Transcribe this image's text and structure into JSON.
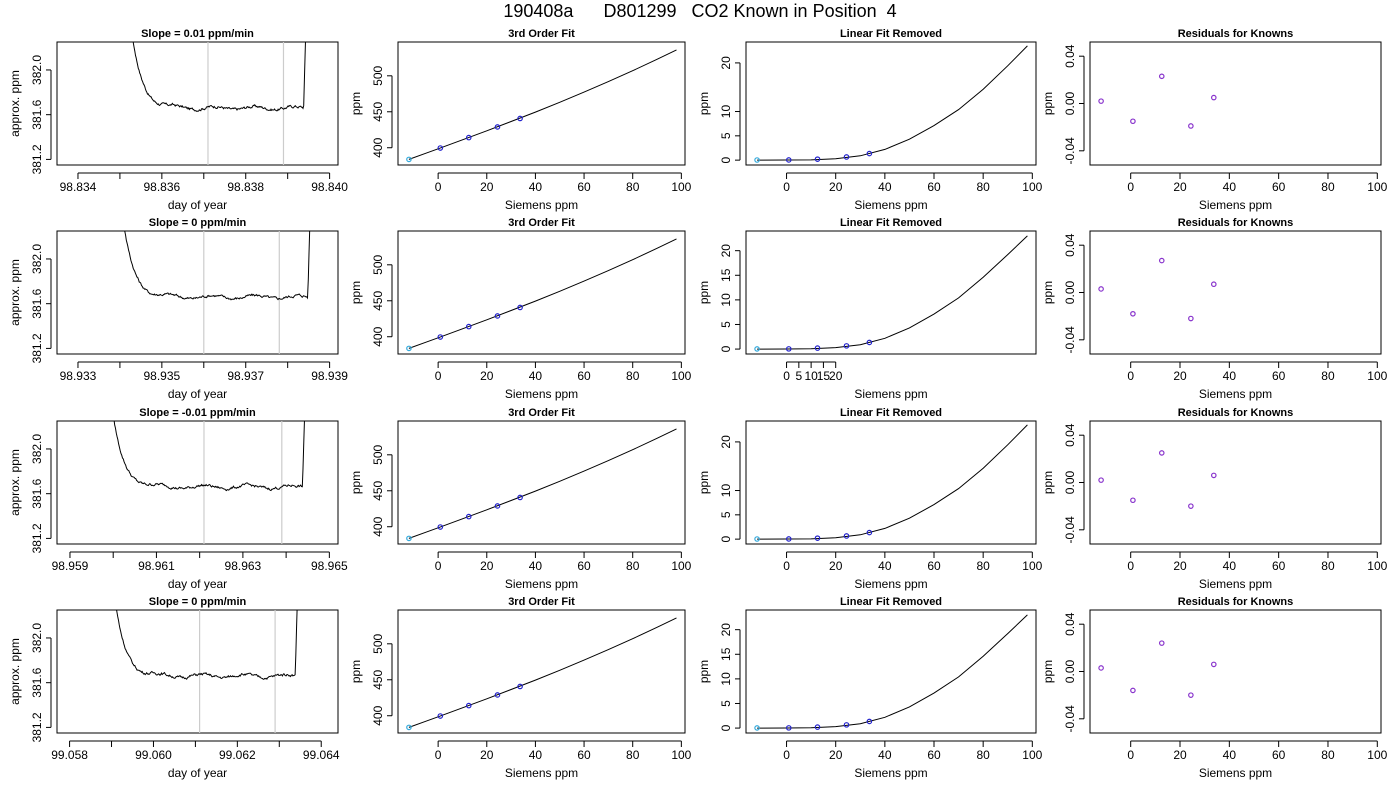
{
  "figure": {
    "title": "190408a      D801299   CO2 Known in Position  4"
  },
  "colors": {
    "axis": "#000000",
    "trace": "#000000",
    "marker_line": "#cccccc",
    "point": "#2222cc",
    "point_hollow": "#8833cc",
    "reference_point": "#33aadd"
  },
  "chart_data": [
    {
      "type": "line",
      "panel": "timeseries",
      "row": 1,
      "title": "Slope =  0.01  ppm/min",
      "xlabel": "day of year",
      "ylabel": "approx. ppm",
      "xlim": [
        98.8335,
        98.8402
      ],
      "ylim": [
        381.15,
        382.25
      ],
      "x_ticks": [
        "98.834",
        "98.836",
        "98.838",
        "98.840"
      ],
      "x_tick_values": [
        98.834,
        98.836,
        98.838,
        98.84
      ],
      "x_minor_ticks": [
        98.835,
        98.837,
        98.839
      ],
      "y_ticks": [
        "381.2",
        "381.6",
        "382.0"
      ],
      "y_tick_values": [
        381.2,
        381.6,
        382.0
      ],
      "interval_markers": [
        98.8371,
        98.8389
      ],
      "trace": {
        "start": 98.8351,
        "end": 98.8395,
        "plateau": 381.66,
        "settle": 0.00045
      }
    },
    {
      "type": "line",
      "panel": "timeseries",
      "row": 2,
      "title": "Slope =  0  ppm/min",
      "xlabel": "day of year",
      "ylabel": "approx. ppm",
      "xlim": [
        98.9325,
        98.9392
      ],
      "ylim": [
        381.15,
        382.25
      ],
      "x_ticks": [
        "98.933",
        "98.935",
        "98.937",
        "98.939"
      ],
      "x_tick_values": [
        98.933,
        98.935,
        98.937,
        98.939
      ],
      "x_minor_ticks": [
        98.934,
        98.936,
        98.938
      ],
      "y_ticks": [
        "381.2",
        "381.6",
        "382.0"
      ],
      "y_tick_values": [
        381.2,
        381.6,
        382.0
      ],
      "interval_markers": [
        98.936,
        98.9378
      ],
      "trace": {
        "start": 98.9339,
        "end": 98.9386,
        "plateau": 381.66,
        "settle": 0.00045
      }
    },
    {
      "type": "line",
      "panel": "timeseries",
      "row": 3,
      "title": "Slope =  -0.01  ppm/min",
      "xlabel": "day of year",
      "ylabel": "approx. ppm",
      "xlim": [
        98.9587,
        98.9652
      ],
      "ylim": [
        381.15,
        382.25
      ],
      "x_ticks": [
        "98.959",
        "98.961",
        "98.963",
        "98.965"
      ],
      "x_tick_values": [
        98.959,
        98.961,
        98.963,
        98.965
      ],
      "x_minor_ticks": [
        98.96,
        98.962,
        98.964
      ],
      "y_ticks": [
        "381.2",
        "381.6",
        "382.0"
      ],
      "y_tick_values": [
        381.2,
        381.6,
        382.0
      ],
      "interval_markers": [
        98.9621,
        98.9639
      ],
      "trace": {
        "start": 98.9598,
        "end": 98.9645,
        "plateau": 381.66,
        "settle": 0.00045
      }
    },
    {
      "type": "line",
      "panel": "timeseries",
      "row": 4,
      "title": "Slope =  0  ppm/min",
      "xlabel": "day of year",
      "ylabel": "approx. ppm",
      "xlim": [
        99.0577,
        99.0644
      ],
      "ylim": [
        381.15,
        382.25
      ],
      "x_ticks": [
        "99.058",
        "99.060",
        "99.062",
        "99.064"
      ],
      "x_tick_values": [
        99.058,
        99.06,
        99.062,
        99.064
      ],
      "x_minor_ticks": [
        99.059,
        99.061,
        99.063
      ],
      "y_ticks": [
        "381.2",
        "381.6",
        "382.0"
      ],
      "y_tick_values": [
        381.2,
        381.6,
        382.0
      ],
      "interval_markers": [
        99.0611,
        99.0629
      ],
      "trace": {
        "start": 99.0589,
        "end": 99.0635,
        "plateau": 381.66,
        "settle": 0.00045
      }
    },
    {
      "type": "line",
      "panel": "fit",
      "row": 1,
      "title": "3rd Order Fit",
      "xlabel": "Siemens ppm",
      "ylabel": "ppm",
      "xlim": [
        -16.5,
        101.5
      ],
      "ylim": [
        376,
        547
      ],
      "x_ticks": [
        "0",
        "20",
        "40",
        "60",
        "80",
        "100"
      ],
      "x_tick_values": [
        0,
        20,
        40,
        60,
        80,
        100
      ],
      "y_ticks": [
        "400",
        "450",
        "500"
      ],
      "y_tick_values": [
        400,
        450,
        500
      ],
      "curve": {
        "x": [
          -12,
          -5,
          0,
          10,
          20,
          30,
          40,
          50,
          60,
          70,
          80,
          90,
          98
        ],
        "y": [
          383.8,
          392.4,
          398.5,
          411.0,
          423.6,
          436.5,
          449.6,
          463.2,
          477.3,
          491.9,
          507.1,
          522.9,
          536.0
        ]
      },
      "points": {
        "x": [
          -12,
          0.9,
          12.6,
          24.4,
          33.7
        ],
        "y": [
          383.8,
          399.6,
          414.1,
          428.9,
          440.7
        ]
      }
    },
    {
      "type": "line",
      "panel": "fit",
      "row": 2,
      "title": "3rd Order Fit",
      "xlabel": "Siemens ppm",
      "ylabel": "ppm",
      "xlim": [
        -16.5,
        101.5
      ],
      "ylim": [
        376,
        547
      ],
      "x_ticks": [
        "0",
        "20",
        "40",
        "60",
        "80",
        "100"
      ],
      "x_tick_values": [
        0,
        20,
        40,
        60,
        80,
        100
      ],
      "y_ticks": [
        "400",
        "450",
        "500"
      ],
      "y_tick_values": [
        400,
        450,
        500
      ],
      "curve": {
        "x": [
          -12,
          -5,
          0,
          10,
          20,
          30,
          40,
          50,
          60,
          70,
          80,
          90,
          98
        ],
        "y": [
          383.8,
          392.4,
          398.5,
          411.0,
          423.6,
          436.5,
          449.6,
          463.2,
          477.3,
          491.9,
          507.1,
          522.9,
          536.0
        ]
      },
      "points": {
        "x": [
          -12,
          0.9,
          12.6,
          24.4,
          33.7
        ],
        "y": [
          383.8,
          399.6,
          414.1,
          428.9,
          440.7
        ]
      }
    },
    {
      "type": "line",
      "panel": "fit",
      "row": 3,
      "title": "3rd Order Fit",
      "xlabel": "Siemens ppm",
      "ylabel": "ppm",
      "xlim": [
        -16.5,
        101.5
      ],
      "ylim": [
        376,
        547
      ],
      "x_ticks": [
        "0",
        "20",
        "40",
        "60",
        "80",
        "100"
      ],
      "x_tick_values": [
        0,
        20,
        40,
        60,
        80,
        100
      ],
      "y_ticks": [
        "400",
        "450",
        "500"
      ],
      "y_tick_values": [
        400,
        450,
        500
      ],
      "curve": {
        "x": [
          -12,
          -5,
          0,
          10,
          20,
          30,
          40,
          50,
          60,
          70,
          80,
          90,
          98
        ],
        "y": [
          383.8,
          392.4,
          398.5,
          411.0,
          423.6,
          436.5,
          449.6,
          463.2,
          477.3,
          491.9,
          507.1,
          522.9,
          536.0
        ]
      },
      "points": {
        "x": [
          -12,
          0.9,
          12.6,
          24.4,
          33.7
        ],
        "y": [
          383.8,
          399.6,
          414.1,
          428.9,
          440.7
        ]
      }
    },
    {
      "type": "line",
      "panel": "fit",
      "row": 4,
      "title": "3rd Order Fit",
      "xlabel": "Siemens ppm",
      "ylabel": "ppm",
      "xlim": [
        -16.5,
        101.5
      ],
      "ylim": [
        376,
        547
      ],
      "x_ticks": [
        "0",
        "20",
        "40",
        "60",
        "80",
        "100"
      ],
      "x_tick_values": [
        0,
        20,
        40,
        60,
        80,
        100
      ],
      "y_ticks": [
        "400",
        "450",
        "500"
      ],
      "y_tick_values": [
        400,
        450,
        500
      ],
      "curve": {
        "x": [
          -12,
          -5,
          0,
          10,
          20,
          30,
          40,
          50,
          60,
          70,
          80,
          90,
          98
        ],
        "y": [
          383.8,
          392.4,
          398.5,
          411.0,
          423.6,
          436.5,
          449.6,
          463.2,
          477.3,
          491.9,
          507.1,
          522.9,
          536.0
        ]
      },
      "points": {
        "x": [
          -12,
          0.9,
          12.6,
          24.4,
          33.7
        ],
        "y": [
          383.8,
          399.6,
          414.1,
          428.9,
          440.7
        ]
      }
    },
    {
      "type": "line",
      "panel": "linear-removed",
      "row": 1,
      "title": "Linear Fit Removed",
      "xlabel": "Siemens ppm",
      "ylabel": "ppm",
      "xlim": [
        -16.5,
        101.5
      ],
      "ylim": [
        -1.0,
        24.3
      ],
      "x_ticks": [
        "0",
        "20",
        "40",
        "60",
        "80",
        "100"
      ],
      "x_tick_values": [
        0,
        20,
        40,
        60,
        80,
        100
      ],
      "y_ticks": [
        "0",
        "5",
        "10",
        "20"
      ],
      "y_tick_values": [
        0,
        5,
        10,
        20
      ],
      "curve": {
        "x": [
          -12,
          0,
          10,
          20,
          30,
          40,
          50,
          60,
          70,
          80,
          90,
          98
        ],
        "y": [
          0,
          0.02,
          0.05,
          0.3,
          0.9,
          2.2,
          4.3,
          7.1,
          10.4,
          14.6,
          19.4,
          23.5
        ]
      },
      "points": {
        "x": [
          -12,
          0.9,
          12.6,
          24.4,
          33.7
        ],
        "y": [
          0.03,
          0.04,
          0.2,
          0.65,
          1.35
        ]
      }
    },
    {
      "type": "line",
      "panel": "linear-removed",
      "row": 2,
      "title": "Linear Fit Removed",
      "xlabel": "Siemens ppm",
      "ylabel": "ppm",
      "xlim": [
        -16.5,
        101.5
      ],
      "ylim": [
        -1.0,
        24.0
      ],
      "x_ticks": [
        "0",
        "5",
        "10",
        "15",
        "20"
      ],
      "x_tick_values": [
        0,
        5,
        10,
        15,
        20
      ],
      "x_ticks_note": "",
      "y_ticks": [
        "0",
        "5",
        "10",
        "15",
        "20"
      ],
      "y_tick_values": [
        0,
        5,
        10,
        15,
        20
      ],
      "curve": {
        "x": [
          -12,
          0,
          10,
          20,
          30,
          40,
          50,
          60,
          70,
          80,
          90,
          98
        ],
        "y": [
          0,
          0.02,
          0.05,
          0.3,
          0.9,
          2.2,
          4.3,
          7.1,
          10.4,
          14.6,
          19.2,
          23.0
        ]
      },
      "points": {
        "x": [
          -12,
          0.9,
          12.6,
          24.4,
          33.7
        ],
        "y": [
          0.03,
          0.04,
          0.2,
          0.65,
          1.35
        ]
      }
    },
    {
      "type": "line",
      "panel": "linear-removed",
      "row": 3,
      "title": "Linear Fit Removed",
      "xlabel": "Siemens ppm",
      "ylabel": "ppm",
      "xlim": [
        -16.5,
        101.5
      ],
      "ylim": [
        -1.0,
        24.3
      ],
      "x_ticks": [
        "0",
        "20",
        "40",
        "60",
        "80",
        "100"
      ],
      "x_tick_values": [
        0,
        20,
        40,
        60,
        80,
        100
      ],
      "y_ticks": [
        "0",
        "5",
        "10",
        "20"
      ],
      "y_tick_values": [
        0,
        5,
        10,
        20
      ],
      "curve": {
        "x": [
          -12,
          0,
          10,
          20,
          30,
          40,
          50,
          60,
          70,
          80,
          90,
          98
        ],
        "y": [
          0,
          0.02,
          0.05,
          0.3,
          0.9,
          2.2,
          4.3,
          7.1,
          10.4,
          14.6,
          19.4,
          23.5
        ]
      },
      "points": {
        "x": [
          -12,
          0.9,
          12.6,
          24.4,
          33.7
        ],
        "y": [
          0.03,
          0.04,
          0.2,
          0.65,
          1.35
        ]
      }
    },
    {
      "type": "line",
      "panel": "linear-removed",
      "row": 4,
      "title": "Linear Fit Removed",
      "xlabel": "Siemens ppm",
      "ylabel": "ppm",
      "xlim": [
        -16.5,
        101.5
      ],
      "ylim": [
        -1.0,
        24.0
      ],
      "x_ticks": [
        "0",
        "20",
        "40",
        "60",
        "80",
        "100"
      ],
      "x_tick_values": [
        0,
        20,
        40,
        60,
        80,
        100
      ],
      "y_ticks": [
        "0",
        "5",
        "10",
        "15",
        "20"
      ],
      "y_tick_values": [
        0,
        5,
        10,
        15,
        20
      ],
      "curve": {
        "x": [
          -12,
          0,
          10,
          20,
          30,
          40,
          50,
          60,
          70,
          80,
          90,
          98
        ],
        "y": [
          0,
          0.02,
          0.05,
          0.3,
          0.9,
          2.2,
          4.3,
          7.1,
          10.4,
          14.6,
          19.2,
          23.0
        ]
      },
      "points": {
        "x": [
          -12,
          0.9,
          12.6,
          24.4,
          33.7
        ],
        "y": [
          0.03,
          0.04,
          0.2,
          0.65,
          1.35
        ]
      }
    },
    {
      "type": "scatter",
      "panel": "residuals",
      "row": 1,
      "title": "Residuals for Knowns",
      "xlabel": "Siemens ppm",
      "ylabel": "ppm",
      "xlim": [
        -16.5,
        101.5
      ],
      "ylim": [
        -0.052,
        0.052
      ],
      "x_ticks": [
        "0",
        "20",
        "40",
        "60",
        "80",
        "100"
      ],
      "x_tick_values": [
        0,
        20,
        40,
        60,
        80,
        100
      ],
      "y_ticks": [
        "-0.04",
        "0.00",
        "0.04"
      ],
      "y_tick_values": [
        -0.04,
        0.0,
        0.04
      ],
      "points": {
        "x": [
          -12,
          0.9,
          12.6,
          24.4,
          33.7
        ],
        "y": [
          0.002,
          -0.015,
          0.023,
          -0.019,
          0.005
        ]
      }
    },
    {
      "type": "scatter",
      "panel": "residuals",
      "row": 2,
      "title": "Residuals for Knowns",
      "xlabel": "Siemens ppm",
      "ylabel": "ppm",
      "xlim": [
        -16.5,
        101.5
      ],
      "ylim": [
        -0.052,
        0.052
      ],
      "x_ticks": [
        "0",
        "20",
        "40",
        "60",
        "80",
        "100"
      ],
      "x_tick_values": [
        0,
        20,
        40,
        60,
        80,
        100
      ],
      "y_ticks": [
        "-0.04",
        "0.00",
        "0.04"
      ],
      "y_tick_values": [
        -0.04,
        0.0,
        0.04
      ],
      "points": {
        "x": [
          -12,
          0.9,
          12.6,
          24.4,
          33.7
        ],
        "y": [
          0.003,
          -0.018,
          0.027,
          -0.022,
          0.007
        ]
      }
    },
    {
      "type": "scatter",
      "panel": "residuals",
      "row": 3,
      "title": "Residuals for Knowns",
      "xlabel": "Siemens ppm",
      "ylabel": "ppm",
      "xlim": [
        -16.5,
        101.5
      ],
      "ylim": [
        -0.052,
        0.052
      ],
      "x_ticks": [
        "0",
        "20",
        "40",
        "60",
        "80",
        "100"
      ],
      "x_tick_values": [
        0,
        20,
        40,
        60,
        80,
        100
      ],
      "y_ticks": [
        "-0.04",
        "0.00",
        "0.04"
      ],
      "y_tick_values": [
        -0.04,
        0.0,
        0.04
      ],
      "points": {
        "x": [
          -12,
          0.9,
          12.6,
          24.4,
          33.7
        ],
        "y": [
          0.002,
          -0.015,
          0.025,
          -0.02,
          0.006
        ]
      }
    },
    {
      "type": "scatter",
      "panel": "residuals",
      "row": 4,
      "title": "Residuals for Knowns",
      "xlabel": "Siemens ppm",
      "ylabel": "ppm",
      "xlim": [
        -16.5,
        101.5
      ],
      "ylim": [
        -0.052,
        0.052
      ],
      "x_ticks": [
        "0",
        "20",
        "40",
        "60",
        "80",
        "100"
      ],
      "x_tick_values": [
        0,
        20,
        40,
        60,
        80,
        100
      ],
      "y_ticks": [
        "-0.04",
        "0.00",
        "0.04"
      ],
      "y_tick_values": [
        -0.04,
        0.0,
        0.04
      ],
      "points": {
        "x": [
          -12,
          0.9,
          12.6,
          24.4,
          33.7
        ],
        "y": [
          0.003,
          -0.016,
          0.024,
          -0.02,
          0.006
        ]
      }
    }
  ]
}
